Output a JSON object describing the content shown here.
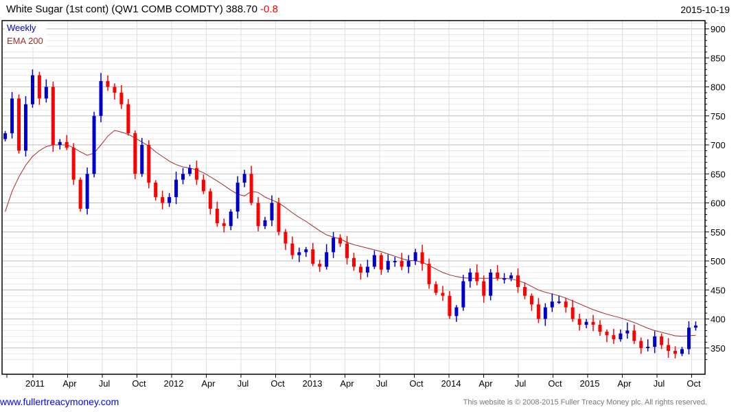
{
  "header": {
    "title": "White Sugar (1st cont) (QW1 COMB COMDTY) 388.70",
    "change": "-0.8",
    "date": "2015-10-19"
  },
  "footer": {
    "link": "www.fullertreacymoney.com",
    "copyright": "This website is © 2008-2015 Fuller Treacy Money plc. All rights reserved."
  },
  "colors": {
    "up": "#0000cc",
    "down": "#ff0000",
    "ema": "#a52a2a",
    "weekly_label": "#0000cc"
  },
  "chart_data": {
    "type": "candlestick",
    "title": "White Sugar (1st cont) (QW1 COMB COMDTY)",
    "legend": [
      "Weekly",
      "EMA 200"
    ],
    "legend_position": "top-left",
    "ylim": [
      320,
      915
    ],
    "yticks": [
      350,
      400,
      450,
      500,
      550,
      600,
      650,
      700,
      750,
      800,
      850,
      900
    ],
    "xlim_years": [
      2010.78,
      2015.86
    ],
    "x_start_year": 2010.8,
    "x_step_years": 0.0493,
    "xtick_labels": [
      "2011",
      "Apr",
      "Jul",
      "Oct",
      "2012",
      "Apr",
      "Jul",
      "Oct",
      "2013",
      "Apr",
      "Jul",
      "Oct",
      "2014",
      "Apr",
      "Jul",
      "Oct",
      "2015",
      "Apr",
      "Jul",
      "Oct"
    ],
    "xtick_years": [
      2011.0,
      2011.25,
      2011.5,
      2011.75,
      2012.0,
      2012.25,
      2012.5,
      2012.75,
      2013.0,
      2013.25,
      2013.5,
      2013.75,
      2014.0,
      2014.25,
      2014.5,
      2014.75,
      2015.0,
      2015.25,
      2015.5,
      2015.75
    ],
    "first_open": 710,
    "close": [
      720,
      780,
      690,
      770,
      820,
      780,
      800,
      700,
      705,
      695,
      640,
      590,
      650,
      750,
      810,
      800,
      790,
      770,
      720,
      650,
      700,
      635,
      610,
      600,
      610,
      640,
      650,
      660,
      640,
      620,
      590,
      565,
      560,
      585,
      635,
      650,
      600,
      560,
      570,
      600,
      550,
      530,
      510,
      515,
      520,
      495,
      490,
      515,
      540,
      530,
      505,
      490,
      480,
      490,
      510,
      485,
      500,
      500,
      490,
      500,
      515,
      495,
      460,
      445,
      440,
      405,
      420,
      465,
      480,
      465,
      440,
      480,
      470,
      470,
      475,
      455,
      440,
      425,
      400,
      420,
      430,
      430,
      420,
      400,
      390,
      395,
      390,
      378,
      372,
      365,
      375,
      380,
      362,
      350,
      352,
      370,
      355,
      345,
      340,
      348,
      385,
      388.7
    ],
    "ema200": [
      585,
      620,
      645,
      665,
      680,
      690,
      697,
      700,
      700,
      700,
      695,
      688,
      682,
      686,
      700,
      715,
      725,
      722,
      718,
      712,
      705,
      698,
      688,
      680,
      672,
      666,
      662,
      660,
      657,
      652,
      645,
      638,
      630,
      622,
      615,
      612,
      620,
      618,
      610,
      605,
      600,
      592,
      583,
      575,
      568,
      560,
      552,
      545,
      541,
      538,
      532,
      528,
      525,
      522,
      519,
      516,
      512,
      508,
      504,
      501,
      500,
      498,
      492,
      486,
      480,
      476,
      473,
      471,
      470,
      470,
      470,
      470,
      470,
      470,
      469,
      466,
      462,
      456,
      450,
      446,
      443,
      440,
      436,
      431,
      426,
      421,
      416,
      412,
      408,
      405,
      402,
      398,
      394,
      389,
      384,
      380,
      377,
      374,
      371,
      370,
      371,
      372
    ]
  }
}
